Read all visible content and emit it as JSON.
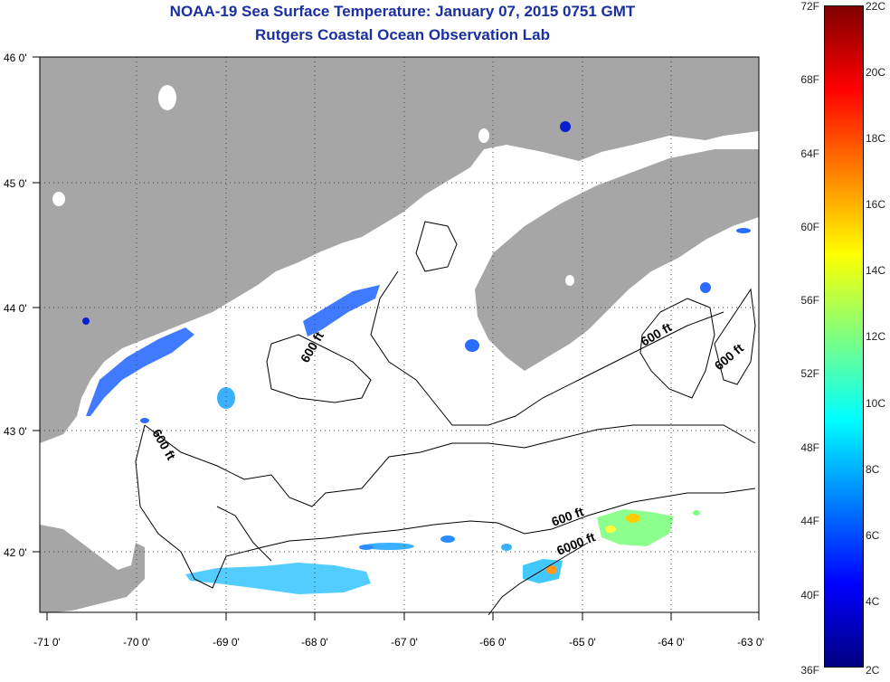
{
  "title": {
    "line1": "NOAA-19 Sea Surface Temperature:  January 07, 2015 0751 GMT",
    "line2": "Rutgers Coastal Ocean Observation Lab"
  },
  "lat_labels": [
    "46 0'",
    "45 0'",
    "44 0'",
    "43 0'",
    "42 0'"
  ],
  "lon_labels": [
    "-71 0'",
    "-70 0'",
    "-69 0'",
    "-68 0'",
    "-67 0'",
    "-66 0'",
    "-65 0'",
    "-64 0'",
    "-63 0'"
  ],
  "contour_labels": [
    "600 ft",
    "600 ft",
    "600 ft",
    "600 ft",
    "600 ft",
    "6000 ft"
  ],
  "colorbar": {
    "fahrenheit": [
      "72F",
      "68F",
      "64F",
      "60F",
      "56F",
      "52F",
      "48F",
      "44F",
      "40F",
      "36F"
    ],
    "celsius": [
      "22C",
      "20C",
      "18C",
      "16C",
      "14C",
      "12C",
      "10C",
      "8C",
      "6C",
      "4C",
      "2C"
    ]
  },
  "colors": {
    "land": "#a6a6a6",
    "title": "#1a2fa0",
    "contour": "#000000"
  }
}
